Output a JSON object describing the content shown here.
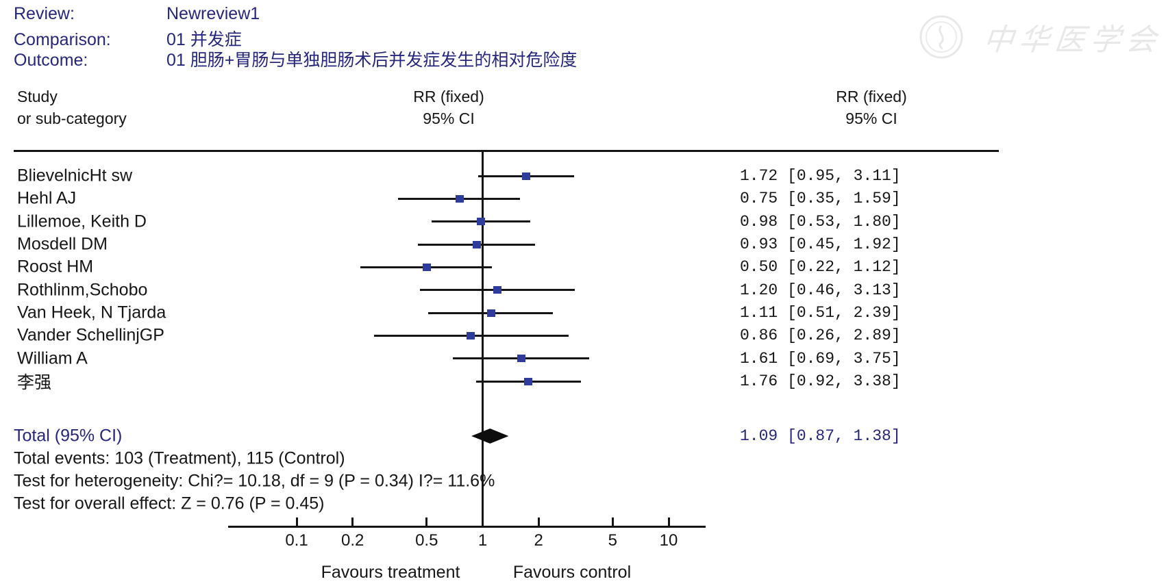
{
  "meta": {
    "review_label": "Review:",
    "review_value": "Newreview1",
    "comparison_label": "Comparison:",
    "comparison_value": "01 并发症",
    "outcome_label": "Outcome:",
    "outcome_value": "01 胆肠+胃肠与单独胆肠术后并发症发生的相对危险度"
  },
  "columns": {
    "study_line1": "Study",
    "study_line2": "or sub-category",
    "plot_header_line1": "RR (fixed)",
    "plot_header_line2": "95% CI",
    "value_header_line1": "RR (fixed)",
    "value_header_line2": "95% CI"
  },
  "chart_data": {
    "type": "forest",
    "effect_measure": "RR (fixed)",
    "ci_level": "95% CI",
    "x_scale": "log",
    "x_range": [
      0.1,
      10
    ],
    "x_ticks": [
      0.1,
      0.2,
      0.5,
      1,
      2,
      5,
      10
    ],
    "x_tick_labels": [
      "0.1",
      "0.2",
      "0.5",
      "1",
      "2",
      "5",
      "10"
    ],
    "null_line": 1,
    "favours_left": "Favours treatment",
    "favours_right": "Favours control",
    "studies": [
      {
        "name": "BlievelnicHt sw",
        "rr": 1.72,
        "ci_low": 0.95,
        "ci_high": 3.11,
        "display": "1.72  [0.95, 3.11]"
      },
      {
        "name": "Hehl AJ",
        "rr": 0.75,
        "ci_low": 0.35,
        "ci_high": 1.59,
        "display": "0.75  [0.35, 1.59]"
      },
      {
        "name": "Lillemoe, Keith D",
        "rr": 0.98,
        "ci_low": 0.53,
        "ci_high": 1.8,
        "display": "0.98  [0.53, 1.80]"
      },
      {
        "name": "Mosdell DM",
        "rr": 0.93,
        "ci_low": 0.45,
        "ci_high": 1.92,
        "display": "0.93  [0.45, 1.92]"
      },
      {
        "name": "Roost HM",
        "rr": 0.5,
        "ci_low": 0.22,
        "ci_high": 1.12,
        "display": "0.50  [0.22, 1.12]"
      },
      {
        "name": "Rothlinm,Schobo",
        "rr": 1.2,
        "ci_low": 0.46,
        "ci_high": 3.13,
        "display": "1.20  [0.46, 3.13]"
      },
      {
        "name": "Van Heek, N Tjarda",
        "rr": 1.11,
        "ci_low": 0.51,
        "ci_high": 2.39,
        "display": "1.11  [0.51, 2.39]"
      },
      {
        "name": "Vander SchellinjGP",
        "rr": 0.86,
        "ci_low": 0.26,
        "ci_high": 2.89,
        "display": "0.86  [0.26, 2.89]"
      },
      {
        "name": "William A",
        "rr": 1.61,
        "ci_low": 0.69,
        "ci_high": 3.75,
        "display": "1.61  [0.69, 3.75]"
      },
      {
        "name": "李强",
        "rr": 1.76,
        "ci_low": 0.92,
        "ci_high": 3.38,
        "display": "1.76  [0.92, 3.38]"
      }
    ],
    "total": {
      "label": "Total (95% CI)",
      "rr": 1.09,
      "ci_low": 0.87,
      "ci_high": 1.38,
      "display": "1.09  [0.87, 1.38]"
    }
  },
  "footer": {
    "total_label": "Total (95% CI)",
    "total_events": "Total events: 103 (Treatment), 115 (Control)",
    "heterogeneity": "Test for heterogeneity: Chi?= 10.18, df = 9 (P = 0.34)  I?= 11.6%",
    "overall": "Test for overall effect: Z = 0.76 (P = 0.45)"
  },
  "watermark": {
    "text": "中华医学会"
  },
  "colors": {
    "header_text": "#26267c",
    "body_text": "#161616",
    "line": "#141414",
    "marker": "#303c9b",
    "diamond": "#0d0d0d",
    "watermark": "#e8e8e8"
  }
}
